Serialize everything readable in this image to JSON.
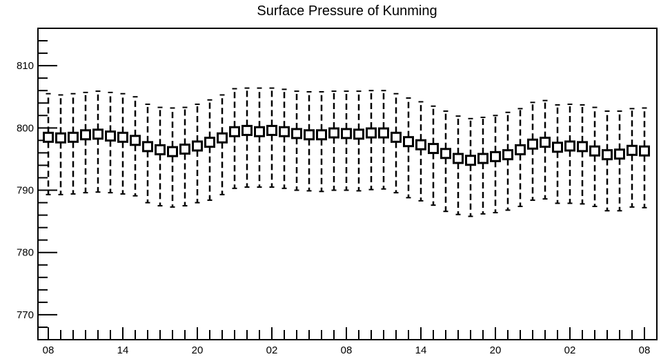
{
  "chart_data": {
    "type": "boxplot",
    "title": "Surface Pressure of Kunming",
    "xlabel": "",
    "ylabel": "",
    "ylim": [
      766,
      816
    ],
    "y_ticks": [
      770,
      780,
      790,
      800,
      810
    ],
    "x_tick_labels": [
      {
        "index": 0,
        "label": "08"
      },
      {
        "index": 6,
        "label": "14"
      },
      {
        "index": 12,
        "label": "20"
      },
      {
        "index": 18,
        "label": "02"
      },
      {
        "index": 24,
        "label": "08"
      },
      {
        "index": 30,
        "label": "14"
      },
      {
        "index": 36,
        "label": "20"
      },
      {
        "index": 42,
        "label": "02"
      },
      {
        "index": 48,
        "label": "08"
      }
    ],
    "grid": false,
    "hours": [
      "08",
      "09",
      "10",
      "11",
      "12",
      "13",
      "14",
      "15",
      "16",
      "17",
      "18",
      "19",
      "20",
      "21",
      "22",
      "23",
      "00",
      "01",
      "02",
      "03",
      "04",
      "05",
      "06",
      "07",
      "08",
      "09",
      "10",
      "11",
      "12",
      "13",
      "14",
      "15",
      "16",
      "17",
      "18",
      "19",
      "20",
      "21",
      "22",
      "23",
      "00",
      "01",
      "02",
      "03",
      "04",
      "05",
      "06",
      "07",
      "08"
    ],
    "whisker_max": [
      805.5,
      805.3,
      805.5,
      805.7,
      805.9,
      805.7,
      805.5,
      805.0,
      803.8,
      803.3,
      803.2,
      803.3,
      803.8,
      804.5,
      805.3,
      806.3,
      806.4,
      806.4,
      806.4,
      806.2,
      805.9,
      805.8,
      805.8,
      805.9,
      805.9,
      805.9,
      806.0,
      806.0,
      805.5,
      804.8,
      804.2,
      803.5,
      802.7,
      801.9,
      801.5,
      801.7,
      802.0,
      802.5,
      803.1,
      804.1,
      804.4,
      803.7,
      803.8,
      803.7,
      803.3,
      802.7,
      802.7,
      803.1,
      803.2
    ],
    "whisker_min": [
      789.3,
      789.3,
      789.4,
      789.6,
      789.7,
      789.6,
      789.4,
      789.1,
      788.0,
      787.5,
      787.3,
      787.5,
      788.0,
      788.4,
      789.3,
      790.3,
      790.5,
      790.5,
      790.5,
      790.3,
      790.0,
      789.9,
      789.8,
      790.0,
      790.0,
      789.9,
      790.1,
      790.2,
      789.6,
      788.8,
      788.3,
      787.6,
      786.6,
      786.1,
      785.8,
      786.2,
      786.4,
      786.8,
      787.4,
      788.4,
      788.6,
      787.9,
      787.9,
      787.8,
      787.4,
      786.7,
      786.7,
      787.3,
      787.2
    ],
    "box_center": [
      798.5,
      798.4,
      798.5,
      798.9,
      799.0,
      798.7,
      798.5,
      798.0,
      797.0,
      796.5,
      796.2,
      796.6,
      797.1,
      797.7,
      798.4,
      799.4,
      799.6,
      799.4,
      799.6,
      799.4,
      799.1,
      798.9,
      798.9,
      799.2,
      799.1,
      799.0,
      799.2,
      799.2,
      798.5,
      797.8,
      797.3,
      796.7,
      795.9,
      795.1,
      794.8,
      795.1,
      795.4,
      795.7,
      796.5,
      797.4,
      797.7,
      796.9,
      797.1,
      797.0,
      796.3,
      795.7,
      795.8,
      796.4,
      796.3
    ]
  }
}
